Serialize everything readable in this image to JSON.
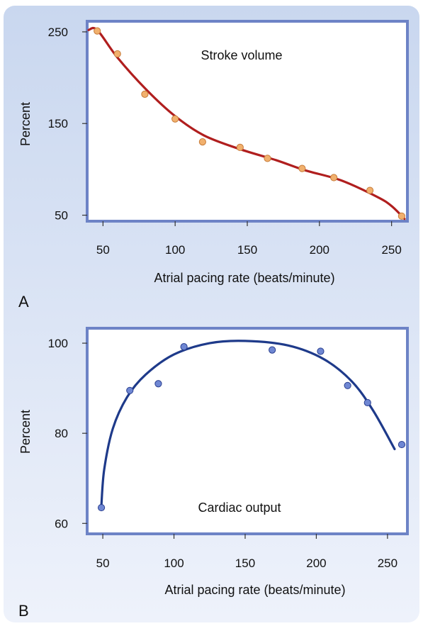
{
  "colors": {
    "background_top": "#c9d7ef",
    "background_bottom": "#eef2fb",
    "frame": "#6d83c6",
    "stroke_curve": "#b01e1e",
    "stroke_points": "#f1b06d",
    "cardiac_curve": "#1e3a8a",
    "cardiac_points": "#6f87d3"
  },
  "chart_data": [
    {
      "type": "scatter",
      "panel_label": "A",
      "annotation": "Stroke volume",
      "xlabel": "Atrial pacing rate (beats/minute)",
      "ylabel": "Percent",
      "xlim": [
        40,
        260
      ],
      "ylim": [
        45,
        260
      ],
      "x_ticks": [
        50,
        100,
        150,
        200,
        250
      ],
      "y_ticks": [
        50,
        150,
        250
      ],
      "points": [
        {
          "x": 46,
          "y": 251
        },
        {
          "x": 60,
          "y": 226
        },
        {
          "x": 79,
          "y": 182
        },
        {
          "x": 100,
          "y": 155
        },
        {
          "x": 119,
          "y": 130
        },
        {
          "x": 145,
          "y": 124
        },
        {
          "x": 164,
          "y": 112
        },
        {
          "x": 188,
          "y": 101
        },
        {
          "x": 210,
          "y": 91
        },
        {
          "x": 235,
          "y": 77
        },
        {
          "x": 257,
          "y": 49
        }
      ],
      "fit_curve": [
        {
          "x": 40,
          "y": 252
        },
        {
          "x": 46,
          "y": 252
        },
        {
          "x": 60,
          "y": 222
        },
        {
          "x": 80,
          "y": 187
        },
        {
          "x": 100,
          "y": 158
        },
        {
          "x": 120,
          "y": 137
        },
        {
          "x": 145,
          "y": 122
        },
        {
          "x": 170,
          "y": 110
        },
        {
          "x": 190,
          "y": 99
        },
        {
          "x": 215,
          "y": 88
        },
        {
          "x": 240,
          "y": 70
        },
        {
          "x": 250,
          "y": 60
        },
        {
          "x": 259,
          "y": 46
        }
      ],
      "grid": false,
      "legend": "none"
    },
    {
      "type": "scatter",
      "panel_label": "B",
      "annotation": "Cardiac output",
      "xlabel": "Atrial pacing rate (beats/minute)",
      "ylabel": "Percent",
      "xlim": [
        40,
        263
      ],
      "ylim": [
        58,
        103
      ],
      "x_ticks": [
        50,
        100,
        150,
        200,
        250
      ],
      "y_ticks": [
        60,
        80,
        100
      ],
      "points": [
        {
          "x": 49,
          "y": 63.5
        },
        {
          "x": 69,
          "y": 89.5
        },
        {
          "x": 89,
          "y": 91
        },
        {
          "x": 107,
          "y": 99.2
        },
        {
          "x": 169,
          "y": 98.5
        },
        {
          "x": 203,
          "y": 98.2
        },
        {
          "x": 222,
          "y": 90.6
        },
        {
          "x": 236,
          "y": 86.8
        },
        {
          "x": 260,
          "y": 77.5
        }
      ],
      "fit_curve": [
        {
          "x": 49,
          "y": 64
        },
        {
          "x": 51,
          "y": 72
        },
        {
          "x": 57,
          "y": 81
        },
        {
          "x": 67,
          "y": 88
        },
        {
          "x": 80,
          "y": 93
        },
        {
          "x": 100,
          "y": 97.5
        },
        {
          "x": 125,
          "y": 100
        },
        {
          "x": 150,
          "y": 100.5
        },
        {
          "x": 180,
          "y": 99.5
        },
        {
          "x": 205,
          "y": 96.5
        },
        {
          "x": 225,
          "y": 91.5
        },
        {
          "x": 240,
          "y": 85
        },
        {
          "x": 255,
          "y": 76.5
        }
      ],
      "grid": false,
      "legend": "none"
    }
  ]
}
